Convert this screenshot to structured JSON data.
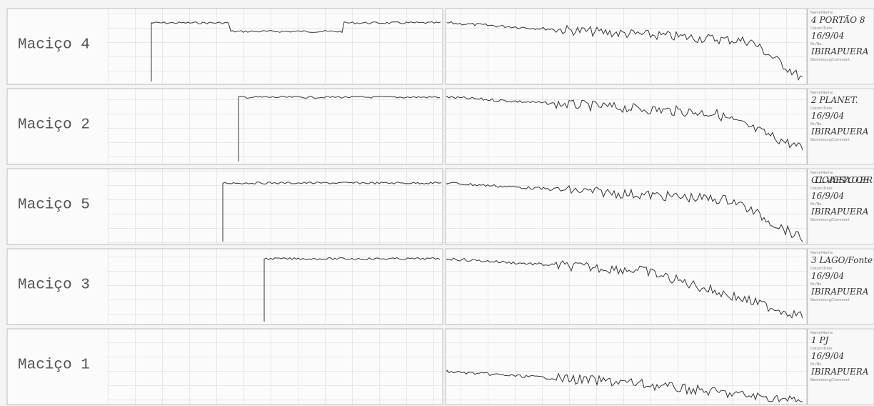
{
  "strips": [
    {
      "label": "Maciço 4",
      "card": {
        "name": "4 PORTÃO 8",
        "date": "16/9/04",
        "place": "IBIRAPUERA"
      }
    },
    {
      "label": "Maciço 2",
      "card": {
        "name": "2 PLANET.",
        "date": "16/9/04",
        "place": "IBIRAPUERA"
      }
    },
    {
      "label": "Maciço 5",
      "card": {
        "name": "CICLOVIA 5 PISTA COOPER",
        "date": "16/9/04",
        "place": "IBIRAPUERA"
      }
    },
    {
      "label": "Maciço 3",
      "card": {
        "name": "3 LAGO/Fonte",
        "date": "16/9/04",
        "place": "IBIRAPUERA"
      }
    },
    {
      "label": "Maciço 1",
      "card": {
        "name": "1 PJ",
        "date": "16/9/04",
        "place": "IBIRAPUERA"
      }
    }
  ],
  "card_fields": {
    "name": "Name/Name",
    "date": "Datum/Date",
    "place": "Nr./No.",
    "comment": "Bemerkung/Comment"
  }
}
